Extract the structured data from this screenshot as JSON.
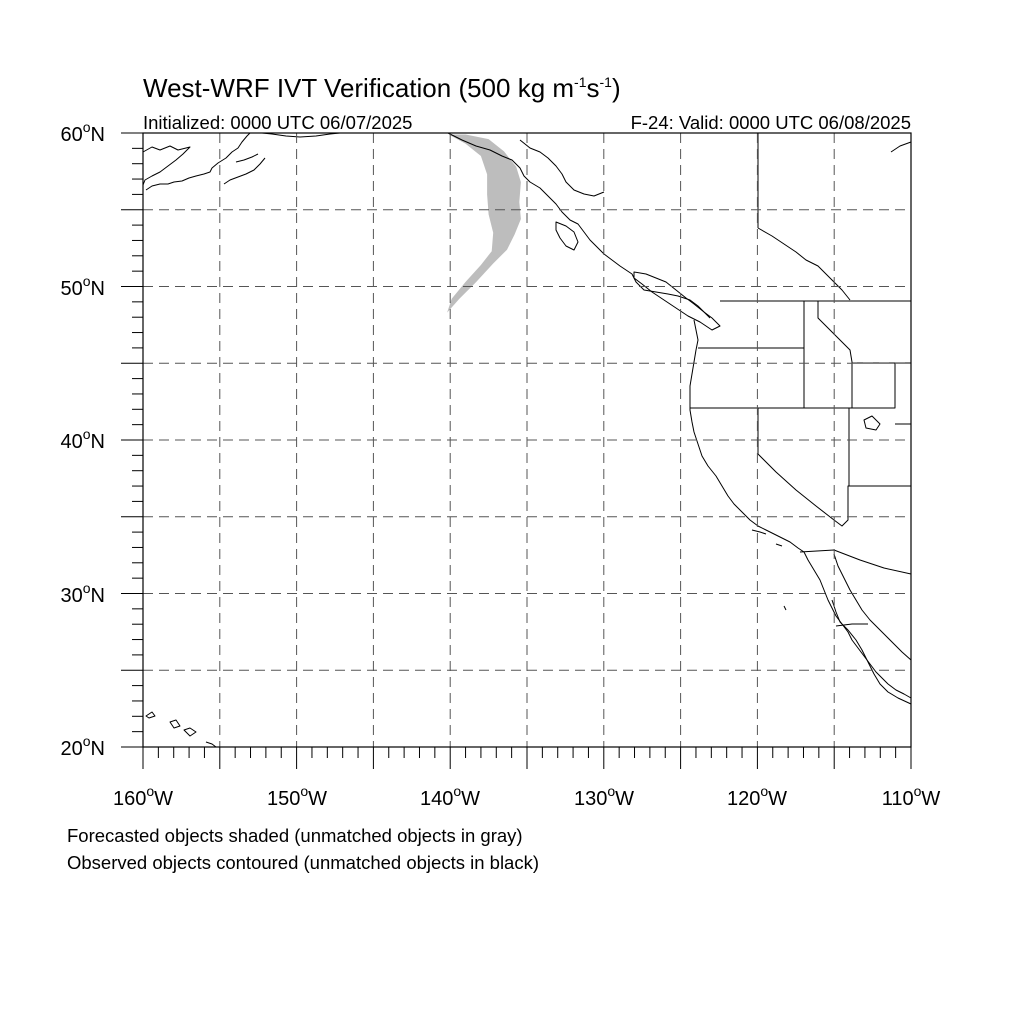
{
  "title": {
    "main": "West-WRF IVT Verification (500 kg m",
    "exp1": "-1",
    "mid": "s",
    "exp2": "-1",
    "close": ")"
  },
  "init_text": "Initialized: 0000 UTC 06/07/2025",
  "valid_text": "F-24: Valid: 0000 UTC 06/08/2025",
  "lon_labels": [
    "160",
    "150",
    "140",
    "130",
    "120",
    "110"
  ],
  "lon_suffix": "W",
  "lat_labels": [
    "60",
    "50",
    "40",
    "30",
    "20"
  ],
  "lat_suffix": "N",
  "degree_symbol": "o",
  "map": {
    "projection": "cylindrical-equidistant",
    "lon_range": [
      -160,
      -110
    ],
    "lat_range": [
      20,
      60
    ],
    "gridline_interval_deg": 5,
    "gridline_style": "dashed",
    "forecast_object_color": "#bdbdbd",
    "forecast_objects": [
      {
        "status": "unmatched",
        "color": "gray",
        "outline_lonlat": [
          [
            -140.1,
            59.9
          ],
          [
            -139.0,
            59.9
          ],
          [
            -137.5,
            59.6
          ],
          [
            -136.5,
            58.8
          ],
          [
            -135.7,
            57.8
          ],
          [
            -135.4,
            56.8
          ],
          [
            -135.5,
            55.5
          ],
          [
            -135.4,
            54.4
          ],
          [
            -135.8,
            53.4
          ],
          [
            -136.3,
            52.4
          ],
          [
            -137.2,
            51.5
          ],
          [
            -138.3,
            50.3
          ],
          [
            -139.4,
            49.2
          ],
          [
            -140.2,
            48.3
          ],
          [
            -139.9,
            49.2
          ],
          [
            -139.0,
            50.3
          ],
          [
            -138.0,
            51.4
          ],
          [
            -137.3,
            52.3
          ],
          [
            -137.2,
            53.5
          ],
          [
            -137.5,
            54.7
          ],
          [
            -137.6,
            56.0
          ],
          [
            -137.6,
            57.3
          ],
          [
            -138.0,
            58.5
          ],
          [
            -139.0,
            59.3
          ]
        ]
      }
    ],
    "observed_objects": []
  },
  "notes": [
    "Forecasted objects shaded (unmatched objects in gray)",
    "Observed objects contoured (unmatched objects in black)"
  ]
}
